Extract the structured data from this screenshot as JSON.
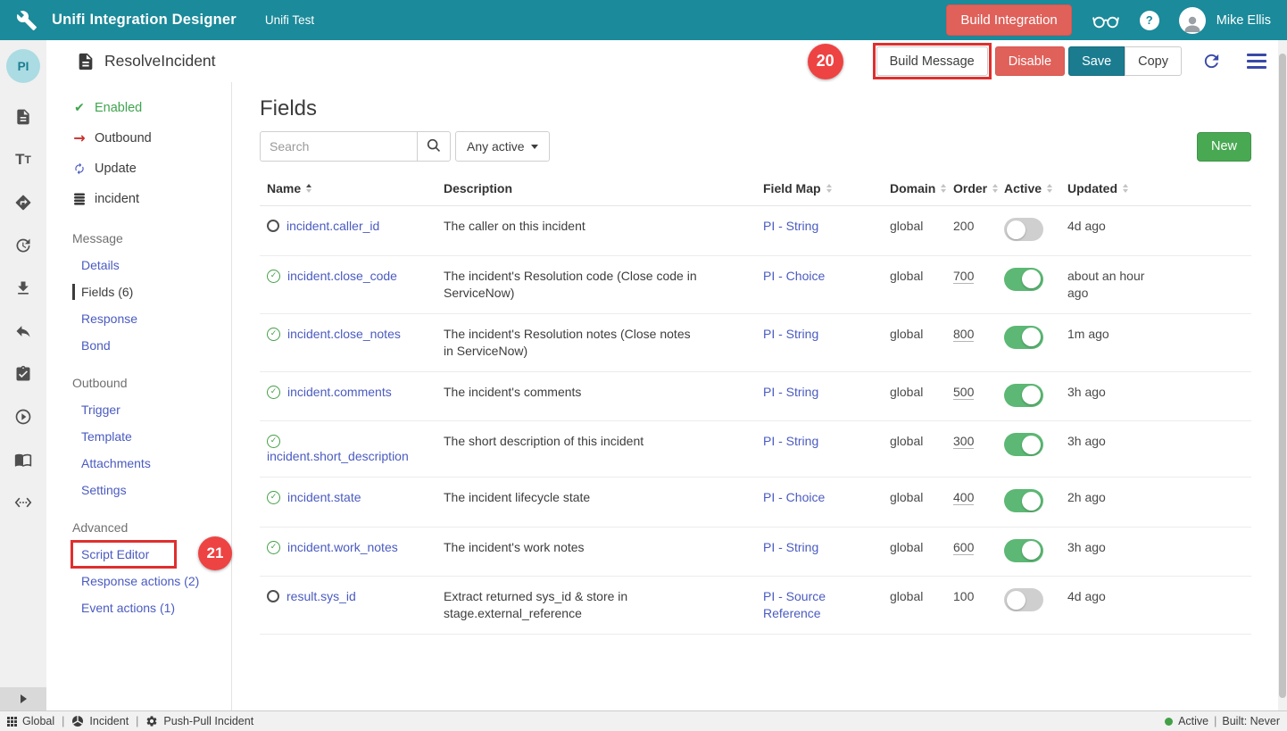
{
  "colors": {
    "teal": "#1b8a9a",
    "teal_dark": "#1b7c90",
    "red": "#e0615a",
    "annotation_red": "#ee4343",
    "highlight_red": "#df2f2e",
    "link": "#4a5bc0",
    "green": "#49a953",
    "toggle_green": "#5cb874",
    "check_green": "#43a047",
    "enabled_green": "#3fa54f",
    "navy": "#3949a8"
  },
  "navbar": {
    "title": "Unifi Integration Designer",
    "subtitle": "Unifi Test",
    "build_integration_label": "Build Integration",
    "user_name": "Mike Ellis",
    "icons": [
      "wrench-icon",
      "glasses-icon",
      "help-icon",
      "user-avatar"
    ]
  },
  "toolbar": {
    "page_title": "ResolveIncident",
    "annotation": "20",
    "build_message_label": "Build Message",
    "disable_label": "Disable",
    "save_label": "Save",
    "copy_label": "Copy",
    "icons": [
      "document-icon",
      "refresh-icon",
      "menu-icon"
    ]
  },
  "icon_rail": {
    "badge": "PI",
    "icons": [
      "document-icon",
      "text-format-icon",
      "directions-icon",
      "history-icon",
      "download-icon",
      "reply-icon",
      "task-check-icon",
      "play-circle-icon",
      "book-icon",
      "code-icon"
    ]
  },
  "sidebar": {
    "status_items": [
      {
        "icon": "check-icon",
        "label": "Enabled",
        "style": "enabled"
      },
      {
        "icon": "arrow-right-icon",
        "label": "Outbound",
        "style": "plain"
      },
      {
        "icon": "refresh-icon",
        "label": "Update",
        "style": "plain"
      },
      {
        "icon": "database-icon",
        "label": "incident",
        "style": "plain"
      }
    ],
    "sections": [
      {
        "header": "Message",
        "items": [
          {
            "label": "Details"
          },
          {
            "label": "Fields (6)",
            "active": true
          },
          {
            "label": "Response"
          },
          {
            "label": "Bond"
          }
        ]
      },
      {
        "header": "Outbound",
        "items": [
          {
            "label": "Trigger"
          },
          {
            "label": "Template"
          },
          {
            "label": "Attachments"
          },
          {
            "label": "Settings"
          }
        ]
      },
      {
        "header": "Advanced",
        "items": [
          {
            "label": "Script Editor",
            "highlighted": true,
            "annotation": "21"
          },
          {
            "label": "Response actions (2)"
          },
          {
            "label": "Event actions (1)"
          }
        ]
      }
    ]
  },
  "main": {
    "heading": "Fields",
    "search_placeholder": "Search",
    "filter_label": "Any active",
    "new_button_label": "New",
    "table": {
      "columns": [
        {
          "label": "Name",
          "sort": "asc"
        },
        {
          "label": "Description",
          "sort": "none"
        },
        {
          "label": "Field Map",
          "sort": "both"
        },
        {
          "label": "Domain",
          "sort": "both"
        },
        {
          "label": "Order",
          "sort": "both"
        },
        {
          "label": "Active",
          "sort": "both"
        },
        {
          "label": "Updated",
          "sort": "both"
        }
      ],
      "rows": [
        {
          "active": false,
          "name": "incident.caller_id",
          "description": "The caller on this incident",
          "field_map": "PI - String",
          "domain": "global",
          "order": "200",
          "order_underline": false,
          "updated": "4d ago"
        },
        {
          "active": true,
          "name": "incident.close_code",
          "description": "The incident's Resolution code (Close code in ServiceNow)",
          "field_map": "PI - Choice",
          "domain": "global",
          "order": "700",
          "order_underline": true,
          "updated": "about an hour ago"
        },
        {
          "active": true,
          "name": "incident.close_notes",
          "description": "The incident's Resolution notes (Close notes in ServiceNow)",
          "field_map": "PI - String",
          "domain": "global",
          "order": "800",
          "order_underline": true,
          "updated": "1m ago"
        },
        {
          "active": true,
          "name": "incident.comments",
          "description": "The incident's comments",
          "field_map": "PI - String",
          "domain": "global",
          "order": "500",
          "order_underline": true,
          "updated": "3h ago"
        },
        {
          "active": true,
          "name": "incident.short_description",
          "description": "The short description of this incident",
          "field_map": "PI - String",
          "domain": "global",
          "order": "300",
          "order_underline": true,
          "updated": "3h ago"
        },
        {
          "active": true,
          "name": "incident.state",
          "description": "The incident lifecycle state",
          "field_map": "PI - Choice",
          "domain": "global",
          "order": "400",
          "order_underline": true,
          "updated": "2h ago"
        },
        {
          "active": true,
          "name": "incident.work_notes",
          "description": "The incident's work notes",
          "field_map": "PI - String",
          "domain": "global",
          "order": "600",
          "order_underline": true,
          "updated": "3h ago"
        },
        {
          "active": false,
          "name": "result.sys_id",
          "description": "Extract returned sys_id & store in stage.external_reference",
          "field_map": "PI - Source Reference",
          "domain": "global",
          "order": "100",
          "order_underline": false,
          "updated": "4d ago"
        }
      ]
    }
  },
  "statusbar": {
    "items": [
      {
        "icon": "grid-icon",
        "label": "Global"
      },
      {
        "icon": "incident-icon",
        "label": "Incident"
      },
      {
        "icon": "gear-icon",
        "label": "Push-Pull Incident"
      }
    ],
    "status_label": "Active",
    "built_label": "Built: Never"
  }
}
